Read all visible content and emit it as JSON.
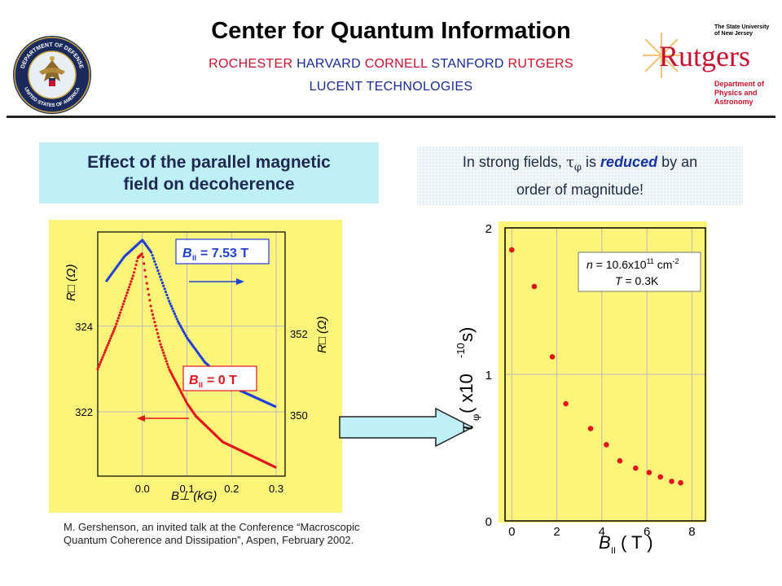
{
  "header": {
    "title": "Center for Quantum Information",
    "institutions_line1": [
      "ROCHESTER",
      "HARVARD",
      "CORNELL",
      "STANFORD",
      "RUTGERS"
    ],
    "institutions_line2": "LUCENT TECHNOLOGIES",
    "dod_logo": {
      "icon": "dod-seal-icon",
      "text_top": "DEPARTMENT OF DEFENSE",
      "text_bottom": "UNITED STATES OF AMERICA"
    },
    "rutgers_logo": {
      "icon": "rutgers-logo",
      "line1": "The State University",
      "line2": "of New Jersey",
      "wordmark": "Rutgers",
      "dept1": "Department of",
      "dept2": "Physics and Astronomy"
    }
  },
  "left_box": {
    "line1": "Effect of the parallel magnetic",
    "line2": "field on decoherence"
  },
  "right_box": {
    "pre": "In strong fields, ",
    "symbol": "τ",
    "subscript": "φ",
    "mid": " is ",
    "emph": "reduced",
    "post": " by an",
    "line2": "order of magnitude!"
  },
  "citation": {
    "line1": "M. Gershenson, an invited talk at the Conference “Macroscopic",
    "line2": "Quantum Coherence and Dissipation”, Aspen,  February 2002."
  },
  "colors": {
    "plot_bg": "#fdf57a",
    "red": "#e4141c",
    "blue": "#1f3fd9",
    "arrow_fill": "#bff0f7"
  },
  "chart_data": [
    {
      "type": "scatter",
      "xlabel": "B⊥ (kG)",
      "ylabel_left": "R□ (Ω)",
      "ylabel_right": "R□ (Ω)",
      "xlim": [
        -0.1,
        0.32
      ],
      "xticks": [
        "0.0",
        "0.1",
        "0.2",
        "0.3"
      ],
      "xtick_values": [
        0,
        0.1,
        0.2,
        0.3
      ],
      "yticks_left": [
        "322",
        "324"
      ],
      "yticks_left_values": [
        322,
        324
      ],
      "ylim_left": [
        320.5,
        326.2
      ],
      "yticks_right": [
        "350",
        "352"
      ],
      "yticks_right_values": [
        350,
        352
      ],
      "ylim_right": [
        348.5,
        354.5
      ],
      "grid": true,
      "series": [
        {
          "name": "B∥ = 7.53 T",
          "axis": "right",
          "color": "#1f3fd9",
          "x": [
            -0.08,
            -0.06,
            -0.04,
            -0.02,
            0.0,
            0.02,
            0.04,
            0.06,
            0.08,
            0.1,
            0.12,
            0.14,
            0.16,
            0.18,
            0.2,
            0.22,
            0.24,
            0.26,
            0.28,
            0.3
          ],
          "y": [
            353.3,
            353.6,
            353.9,
            354.1,
            354.3,
            354.0,
            353.4,
            352.8,
            352.3,
            351.9,
            351.6,
            351.3,
            351.1,
            350.9,
            350.8,
            350.6,
            350.5,
            350.4,
            350.3,
            350.2
          ]
        },
        {
          "name": "B∥ = 0 T",
          "axis": "left",
          "color": "#e4141c",
          "x": [
            -0.1,
            -0.08,
            -0.06,
            -0.04,
            -0.02,
            -0.01,
            0.0,
            0.01,
            0.02,
            0.04,
            0.06,
            0.08,
            0.1,
            0.12,
            0.14,
            0.16,
            0.18,
            0.2,
            0.22,
            0.24,
            0.26,
            0.28,
            0.3
          ],
          "y": [
            323.0,
            323.5,
            324.0,
            324.6,
            325.2,
            325.6,
            325.7,
            325.0,
            324.4,
            323.6,
            323.0,
            322.6,
            322.2,
            321.9,
            321.7,
            321.5,
            321.3,
            321.2,
            321.1,
            321.0,
            320.9,
            320.8,
            320.7
          ]
        }
      ],
      "annotations": [
        {
          "base": "B",
          "sub": "II",
          "text": " = 7.53 T",
          "color": "#1f3fd9"
        },
        {
          "base": "B",
          "sub": "II",
          "text": " = 0 T",
          "color": "#e4141c"
        }
      ]
    },
    {
      "type": "scatter",
      "xlabel_base": "B",
      "xlabel_sub": "II",
      "xlabel_unit": " ( T )",
      "ylabel_symbol": "τ",
      "ylabel_sub": "φ",
      "ylabel_unit": " ( x10",
      "ylabel_exp": "-10",
      "ylabel_end": "s)",
      "xlim": [
        -0.3,
        8.6
      ],
      "xticks": [
        "0",
        "2",
        "4",
        "6",
        "8"
      ],
      "xtick_values": [
        0,
        2,
        4,
        6,
        8
      ],
      "ylim": [
        0,
        2.0
      ],
      "yticks": [
        "0",
        "1",
        "2"
      ],
      "ytick_values": [
        0,
        1,
        2
      ],
      "grid": true,
      "color": "#e4141c",
      "x": [
        0.0,
        1.0,
        1.8,
        2.4,
        3.5,
        4.2,
        4.8,
        5.5,
        6.1,
        6.6,
        7.1,
        7.5
      ],
      "y": [
        1.85,
        1.6,
        1.12,
        0.8,
        0.63,
        0.52,
        0.41,
        0.36,
        0.33,
        0.3,
        0.27,
        0.26
      ],
      "legend": {
        "n_pre": "n",
        "n_val": " = 10.6x10",
        "n_exp": "11",
        "n_unit": " cm",
        "n_unit_exp": "-2",
        "t_pre": "T",
        "t_val": " = 0.3K"
      }
    }
  ]
}
